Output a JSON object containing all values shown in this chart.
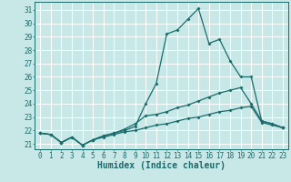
{
  "title": "",
  "xlabel": "Humidex (Indice chaleur)",
  "ylabel": "",
  "background_color": "#c8e8e8",
  "grid_color": "#ffffff",
  "line_color": "#1a6b6b",
  "ylim": [
    20.6,
    31.6
  ],
  "xlim": [
    -0.5,
    23.5
  ],
  "yticks": [
    21,
    22,
    23,
    24,
    25,
    26,
    27,
    28,
    29,
    30,
    31
  ],
  "xticks": [
    0,
    1,
    2,
    3,
    4,
    5,
    6,
    7,
    8,
    9,
    10,
    11,
    12,
    13,
    14,
    15,
    16,
    17,
    18,
    19,
    20,
    21,
    22,
    23
  ],
  "line1_x": [
    0,
    1,
    2,
    3,
    4,
    5,
    6,
    7,
    8,
    9,
    10,
    11,
    12,
    13,
    14,
    15,
    16,
    17,
    18,
    19,
    20,
    21,
    22,
    23
  ],
  "line1_y": [
    21.8,
    21.7,
    21.1,
    21.5,
    20.9,
    21.3,
    21.6,
    21.8,
    22.0,
    22.3,
    24.0,
    25.5,
    29.2,
    29.5,
    30.3,
    31.1,
    28.5,
    28.8,
    27.2,
    26.0,
    26.0,
    22.7,
    22.5,
    22.2
  ],
  "line2_x": [
    0,
    1,
    2,
    3,
    4,
    5,
    6,
    7,
    8,
    9,
    10,
    11,
    12,
    13,
    14,
    15,
    16,
    17,
    18,
    19,
    20,
    21,
    22,
    23
  ],
  "line2_y": [
    21.8,
    21.7,
    21.1,
    21.5,
    20.9,
    21.3,
    21.6,
    21.8,
    22.1,
    22.5,
    23.1,
    23.2,
    23.4,
    23.7,
    23.9,
    24.2,
    24.5,
    24.8,
    25.0,
    25.2,
    24.0,
    22.7,
    22.5,
    22.2
  ],
  "line3_x": [
    0,
    1,
    2,
    3,
    4,
    5,
    6,
    7,
    8,
    9,
    10,
    11,
    12,
    13,
    14,
    15,
    16,
    17,
    18,
    19,
    20,
    21,
    22,
    23
  ],
  "line3_y": [
    21.8,
    21.7,
    21.1,
    21.5,
    20.9,
    21.3,
    21.5,
    21.7,
    21.9,
    22.0,
    22.2,
    22.4,
    22.5,
    22.7,
    22.9,
    23.0,
    23.2,
    23.4,
    23.5,
    23.7,
    23.8,
    22.6,
    22.4,
    22.2
  ],
  "tick_fontsize": 5.5,
  "xlabel_fontsize": 7,
  "marker_size": 2.0,
  "line_width": 0.9
}
